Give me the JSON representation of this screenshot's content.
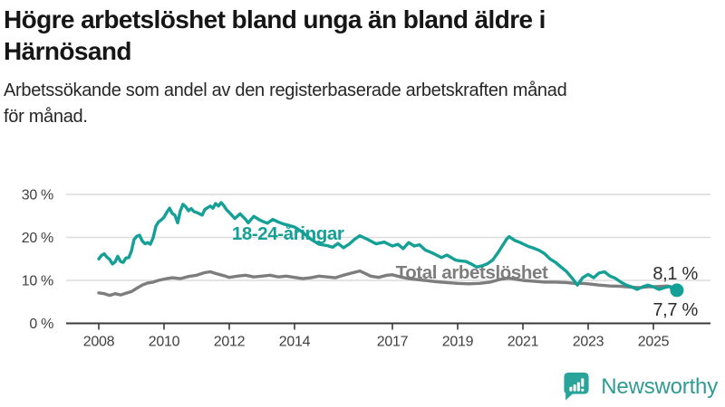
{
  "header": {
    "title_line1": "Högre arbetslöshet bland unga än bland äldre i",
    "title_line2": "Härnösand"
  },
  "subtitle": {
    "line1": "Arbetssökande som andel av den registerbaserade arbetskraften månad",
    "line2": "för månad."
  },
  "chart_data": {
    "type": "line",
    "title": "Högre arbetslöshet bland unga än bland äldre i Härnösand",
    "subtitle": "Arbetssökande som andel av den registerbaserade arbetskraften månad för månad.",
    "x_unit": "year (monthly series)",
    "xlim": [
      2008,
      2025.9
    ],
    "ylim": [
      0,
      30
    ],
    "grid": "horizontal",
    "colors": {
      "young": "#14a096",
      "total": "#7d7d7d",
      "grid": "#dcdcdc",
      "axis": "#3a3a3a",
      "tick_text": "#404040",
      "end_label_text": "#2b2b2b"
    },
    "yticks": [
      {
        "value": 0,
        "label": "0 %"
      },
      {
        "value": 10,
        "label": "10 %"
      },
      {
        "value": 20,
        "label": "20 %"
      },
      {
        "value": 30,
        "label": "30 %"
      }
    ],
    "xticks": [
      {
        "value": 2008,
        "label": "2008"
      },
      {
        "value": 2010,
        "label": "2010"
      },
      {
        "value": 2012,
        "label": "2012"
      },
      {
        "value": 2014,
        "label": "2014"
      },
      {
        "value": 2017,
        "label": "2017"
      },
      {
        "value": 2019,
        "label": "2019"
      },
      {
        "value": 2021,
        "label": "2021"
      },
      {
        "value": 2023,
        "label": "2023"
      },
      {
        "value": 2025,
        "label": "2025"
      }
    ],
    "series": [
      {
        "name": "Total arbetslöshet",
        "color": "#7d7d7d",
        "end_label": "8,1 %",
        "end_value": 8.1,
        "end_dot": true,
        "end_dot_r": 5,
        "end_label_dy": -10,
        "inline_label": {
          "x": 2017.1,
          "y_pct": 10.4
        },
        "points": [
          [
            2008.0,
            7.1
          ],
          [
            2008.17,
            6.9
          ],
          [
            2008.33,
            6.5
          ],
          [
            2008.5,
            6.9
          ],
          [
            2008.67,
            6.6
          ],
          [
            2008.83,
            7.0
          ],
          [
            2009.0,
            7.4
          ],
          [
            2009.17,
            8.2
          ],
          [
            2009.33,
            8.9
          ],
          [
            2009.5,
            9.4
          ],
          [
            2009.67,
            9.6
          ],
          [
            2009.83,
            10.0
          ],
          [
            2010.0,
            10.3
          ],
          [
            2010.25,
            10.6
          ],
          [
            2010.5,
            10.4
          ],
          [
            2010.75,
            10.9
          ],
          [
            2011.0,
            11.2
          ],
          [
            2011.25,
            11.8
          ],
          [
            2011.42,
            12.0
          ],
          [
            2011.58,
            11.6
          ],
          [
            2011.83,
            11.1
          ],
          [
            2012.0,
            10.7
          ],
          [
            2012.25,
            11.0
          ],
          [
            2012.5,
            11.2
          ],
          [
            2012.75,
            10.8
          ],
          [
            2013.0,
            11.0
          ],
          [
            2013.25,
            11.2
          ],
          [
            2013.5,
            10.8
          ],
          [
            2013.75,
            11.0
          ],
          [
            2014.0,
            10.7
          ],
          [
            2014.25,
            10.4
          ],
          [
            2014.5,
            10.6
          ],
          [
            2014.75,
            11.0
          ],
          [
            2015.0,
            10.8
          ],
          [
            2015.25,
            10.6
          ],
          [
            2015.5,
            11.2
          ],
          [
            2015.75,
            11.7
          ],
          [
            2016.0,
            12.2
          ],
          [
            2016.17,
            11.6
          ],
          [
            2016.33,
            11.0
          ],
          [
            2016.58,
            10.7
          ],
          [
            2016.83,
            11.2
          ],
          [
            2017.0,
            11.3
          ],
          [
            2017.25,
            10.8
          ],
          [
            2017.5,
            10.4
          ],
          [
            2017.75,
            10.2
          ],
          [
            2018.0,
            10.0
          ],
          [
            2018.33,
            9.7
          ],
          [
            2018.67,
            9.5
          ],
          [
            2019.0,
            9.3
          ],
          [
            2019.33,
            9.2
          ],
          [
            2019.67,
            9.3
          ],
          [
            2020.0,
            9.6
          ],
          [
            2020.33,
            10.3
          ],
          [
            2020.58,
            10.5
          ],
          [
            2020.83,
            10.2
          ],
          [
            2021.0,
            10.0
          ],
          [
            2021.33,
            9.8
          ],
          [
            2021.67,
            9.6
          ],
          [
            2022.0,
            9.6
          ],
          [
            2022.33,
            9.5
          ],
          [
            2022.58,
            9.3
          ],
          [
            2022.83,
            9.3
          ],
          [
            2023.0,
            9.2
          ],
          [
            2023.33,
            8.9
          ],
          [
            2023.67,
            8.7
          ],
          [
            2024.0,
            8.6
          ],
          [
            2024.33,
            8.4
          ],
          [
            2024.58,
            8.3
          ],
          [
            2024.83,
            8.5
          ],
          [
            2025.0,
            8.5
          ],
          [
            2025.25,
            8.6
          ],
          [
            2025.42,
            8.7
          ],
          [
            2025.58,
            8.4
          ],
          [
            2025.72,
            8.1
          ]
        ]
      },
      {
        "name": "18-24-åringar",
        "color": "#14a096",
        "end_label": "7,7 %",
        "end_value": 7.7,
        "end_dot": true,
        "end_dot_r": 7.5,
        "end_label_dy": 28,
        "inline_label": {
          "x": 2012.08,
          "y_pct": 19.5
        },
        "points": [
          [
            2008.0,
            15.0
          ],
          [
            2008.08,
            15.8
          ],
          [
            2008.17,
            16.2
          ],
          [
            2008.25,
            15.4
          ],
          [
            2008.33,
            14.9
          ],
          [
            2008.42,
            13.8
          ],
          [
            2008.5,
            14.3
          ],
          [
            2008.58,
            15.6
          ],
          [
            2008.67,
            14.4
          ],
          [
            2008.75,
            14.2
          ],
          [
            2008.83,
            15.2
          ],
          [
            2008.92,
            15.3
          ],
          [
            2009.0,
            16.8
          ],
          [
            2009.08,
            19.5
          ],
          [
            2009.17,
            20.3
          ],
          [
            2009.25,
            20.5
          ],
          [
            2009.33,
            19.2
          ],
          [
            2009.42,
            18.5
          ],
          [
            2009.5,
            18.8
          ],
          [
            2009.58,
            18.4
          ],
          [
            2009.67,
            20.0
          ],
          [
            2009.75,
            22.6
          ],
          [
            2009.83,
            23.6
          ],
          [
            2009.92,
            24.1
          ],
          [
            2010.0,
            24.7
          ],
          [
            2010.08,
            25.8
          ],
          [
            2010.17,
            26.8
          ],
          [
            2010.25,
            25.6
          ],
          [
            2010.33,
            25.2
          ],
          [
            2010.42,
            23.4
          ],
          [
            2010.5,
            26.2
          ],
          [
            2010.58,
            27.7
          ],
          [
            2010.67,
            27.1
          ],
          [
            2010.75,
            26.2
          ],
          [
            2010.83,
            26.7
          ],
          [
            2010.92,
            26.0
          ],
          [
            2011.0,
            25.8
          ],
          [
            2011.17,
            25.2
          ],
          [
            2011.25,
            26.5
          ],
          [
            2011.42,
            27.3
          ],
          [
            2011.5,
            26.8
          ],
          [
            2011.58,
            27.9
          ],
          [
            2011.67,
            27.3
          ],
          [
            2011.75,
            28.1
          ],
          [
            2011.83,
            27.4
          ],
          [
            2011.92,
            26.4
          ],
          [
            2012.0,
            25.8
          ],
          [
            2012.17,
            24.4
          ],
          [
            2012.33,
            25.5
          ],
          [
            2012.5,
            24.2
          ],
          [
            2012.58,
            23.4
          ],
          [
            2012.75,
            24.9
          ],
          [
            2012.92,
            24.1
          ],
          [
            2013.0,
            23.8
          ],
          [
            2013.17,
            23.3
          ],
          [
            2013.33,
            24.2
          ],
          [
            2013.5,
            23.6
          ],
          [
            2013.67,
            23.1
          ],
          [
            2013.83,
            22.8
          ],
          [
            2014.0,
            22.4
          ],
          [
            2014.25,
            21.2
          ],
          [
            2014.5,
            19.6
          ],
          [
            2014.75,
            18.4
          ],
          [
            2015.0,
            18.1
          ],
          [
            2015.17,
            17.7
          ],
          [
            2015.33,
            18.6
          ],
          [
            2015.5,
            17.6
          ],
          [
            2015.67,
            18.4
          ],
          [
            2015.83,
            19.5
          ],
          [
            2016.0,
            20.4
          ],
          [
            2016.25,
            19.5
          ],
          [
            2016.5,
            18.5
          ],
          [
            2016.75,
            18.9
          ],
          [
            2017.0,
            18.0
          ],
          [
            2017.17,
            18.4
          ],
          [
            2017.33,
            17.4
          ],
          [
            2017.5,
            18.8
          ],
          [
            2017.67,
            18.0
          ],
          [
            2017.83,
            18.3
          ],
          [
            2018.0,
            17.1
          ],
          [
            2018.25,
            16.3
          ],
          [
            2018.5,
            15.3
          ],
          [
            2018.67,
            15.9
          ],
          [
            2018.92,
            14.8
          ],
          [
            2019.0,
            14.6
          ],
          [
            2019.25,
            14.4
          ],
          [
            2019.42,
            13.8
          ],
          [
            2019.58,
            13.1
          ],
          [
            2019.75,
            13.4
          ],
          [
            2019.92,
            13.9
          ],
          [
            2020.08,
            14.8
          ],
          [
            2020.25,
            16.6
          ],
          [
            2020.42,
            18.6
          ],
          [
            2020.5,
            19.6
          ],
          [
            2020.58,
            20.2
          ],
          [
            2020.67,
            19.7
          ],
          [
            2020.75,
            19.3
          ],
          [
            2020.92,
            18.8
          ],
          [
            2021.0,
            18.5
          ],
          [
            2021.17,
            17.9
          ],
          [
            2021.33,
            17.5
          ],
          [
            2021.5,
            17.0
          ],
          [
            2021.67,
            16.2
          ],
          [
            2021.83,
            15.0
          ],
          [
            2022.0,
            14.2
          ],
          [
            2022.17,
            13.1
          ],
          [
            2022.33,
            12.1
          ],
          [
            2022.5,
            10.6
          ],
          [
            2022.67,
            8.9
          ],
          [
            2022.83,
            10.6
          ],
          [
            2023.0,
            11.4
          ],
          [
            2023.17,
            10.6
          ],
          [
            2023.33,
            11.7
          ],
          [
            2023.5,
            12.0
          ],
          [
            2023.67,
            11.0
          ],
          [
            2023.83,
            10.5
          ],
          [
            2024.0,
            9.6
          ],
          [
            2024.17,
            8.9
          ],
          [
            2024.33,
            8.5
          ],
          [
            2024.5,
            7.9
          ],
          [
            2024.67,
            8.5
          ],
          [
            2024.83,
            8.9
          ],
          [
            2025.0,
            8.5
          ],
          [
            2025.17,
            7.9
          ],
          [
            2025.33,
            8.3
          ],
          [
            2025.5,
            8.6
          ],
          [
            2025.58,
            7.9
          ],
          [
            2025.72,
            7.7
          ]
        ]
      }
    ]
  },
  "footer": {
    "brand": "Newsworthy"
  }
}
